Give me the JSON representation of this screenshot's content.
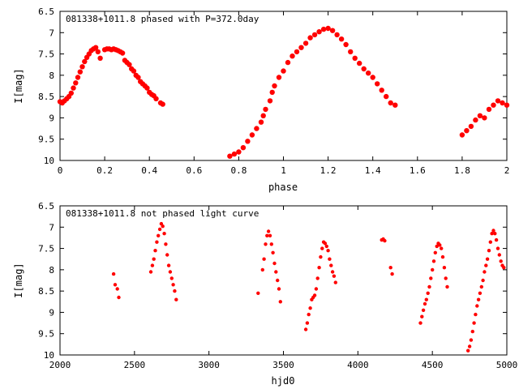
{
  "chart_data": [
    {
      "type": "scatter",
      "title": "081338+1011.8 phased with P=372.0day",
      "xlabel": "phase",
      "ylabel": "I[mag]",
      "xlim": [
        0,
        2
      ],
      "ylim": [
        6.5,
        10
      ],
      "y_inverted": true,
      "x_ticks": [
        "0",
        "0.2",
        "0.4",
        "0.6",
        "0.8",
        "1",
        "1.2",
        "1.4",
        "1.6",
        "1.8",
        "2"
      ],
      "y_ticks": [
        "6.5",
        "7",
        "7.5",
        "8",
        "8.5",
        "9",
        "9.5",
        "10"
      ],
      "marker_color": "#ff0000",
      "series": [
        {
          "x": [
            0.0,
            0.01,
            0.02,
            0.03,
            0.04,
            0.05,
            0.06,
            0.07,
            0.08,
            0.09,
            0.1,
            0.11,
            0.12,
            0.13,
            0.14,
            0.15,
            0.16,
            0.17,
            0.18,
            0.2,
            0.21,
            0.22,
            0.23,
            0.24,
            0.25,
            0.26,
            0.27,
            0.28,
            0.29,
            0.3,
            0.31,
            0.32,
            0.33,
            0.34,
            0.35,
            0.36,
            0.37,
            0.38,
            0.39,
            0.4,
            0.41,
            0.42,
            0.43,
            0.45,
            0.46,
            0.76,
            0.78,
            0.8,
            0.82,
            0.84,
            0.86,
            0.88,
            0.9,
            0.91,
            0.92,
            0.94,
            0.95,
            0.96,
            0.98,
            1.0,
            1.02,
            1.04,
            1.06,
            1.08,
            1.1,
            1.12,
            1.14,
            1.16,
            1.18,
            1.2,
            1.22,
            1.24,
            1.26,
            1.28,
            1.3,
            1.32,
            1.34,
            1.36,
            1.38,
            1.4,
            1.42,
            1.44,
            1.46,
            1.48,
            1.5,
            1.8,
            1.82,
            1.84,
            1.86,
            1.88,
            1.9,
            1.92,
            1.94,
            1.96,
            1.98,
            2.0
          ],
          "y": [
            8.62,
            8.65,
            8.6,
            8.55,
            8.5,
            8.42,
            8.3,
            8.18,
            8.05,
            7.92,
            7.8,
            7.68,
            7.58,
            7.5,
            7.42,
            7.38,
            7.35,
            7.45,
            7.6,
            7.4,
            7.38,
            7.38,
            7.4,
            7.38,
            7.4,
            7.42,
            7.45,
            7.48,
            7.65,
            7.7,
            7.75,
            7.85,
            7.9,
            8.0,
            8.05,
            8.15,
            8.2,
            8.25,
            8.3,
            8.4,
            8.45,
            8.48,
            8.55,
            8.65,
            8.68,
            9.9,
            9.85,
            9.8,
            9.7,
            9.55,
            9.4,
            9.25,
            9.1,
            8.95,
            8.8,
            8.6,
            8.4,
            8.25,
            8.05,
            7.9,
            7.7,
            7.55,
            7.45,
            7.35,
            7.25,
            7.12,
            7.05,
            6.98,
            6.92,
            6.9,
            6.95,
            7.05,
            7.15,
            7.28,
            7.45,
            7.6,
            7.72,
            7.85,
            7.95,
            8.05,
            8.2,
            8.35,
            8.5,
            8.65,
            8.7,
            9.4,
            9.3,
            9.2,
            9.05,
            8.95,
            9.0,
            8.8,
            8.7,
            8.6,
            8.65,
            8.7
          ]
        }
      ]
    },
    {
      "type": "scatter",
      "title": "081338+1011.8 not phased light curve",
      "xlabel": "hjd0",
      "ylabel": "I[mag]",
      "xlim": [
        2000,
        5000
      ],
      "ylim": [
        6.5,
        10
      ],
      "y_inverted": true,
      "x_ticks": [
        "2000",
        "2500",
        "3000",
        "3500",
        "4000",
        "4500",
        "5000"
      ],
      "y_ticks": [
        "6.5",
        "7",
        "7.5",
        "8",
        "8.5",
        "9",
        "9.5",
        "10"
      ],
      "marker_color": "#ff0000",
      "series": [
        {
          "x": [
            2360,
            2370,
            2385,
            2395,
            2610,
            2620,
            2630,
            2640,
            2650,
            2660,
            2670,
            2680,
            2690,
            2700,
            2710,
            2720,
            2730,
            2740,
            2750,
            2760,
            2770,
            2780,
            3330,
            3360,
            3370,
            3380,
            3390,
            3400,
            3410,
            3420,
            3430,
            3440,
            3450,
            3460,
            3470,
            3480,
            3650,
            3660,
            3670,
            3680,
            3690,
            3700,
            3710,
            3720,
            3730,
            3740,
            3750,
            3760,
            3770,
            3780,
            3790,
            3800,
            3810,
            3820,
            3830,
            3840,
            3850,
            4160,
            4170,
            4180,
            4220,
            4230,
            4420,
            4430,
            4440,
            4450,
            4460,
            4470,
            4480,
            4490,
            4500,
            4510,
            4520,
            4530,
            4540,
            4550,
            4560,
            4570,
            4580,
            4590,
            4600,
            4740,
            4750,
            4760,
            4770,
            4780,
            4790,
            4800,
            4810,
            4820,
            4830,
            4840,
            4850,
            4860,
            4870,
            4880,
            4890,
            4900,
            4910,
            4920,
            4930,
            4940,
            4950,
            4960,
            4970,
            4980
          ],
          "y": [
            8.1,
            8.35,
            8.45,
            8.65,
            8.05,
            7.9,
            7.75,
            7.55,
            7.35,
            7.2,
            7.05,
            6.92,
            6.98,
            7.15,
            7.4,
            7.65,
            7.9,
            8.05,
            8.2,
            8.35,
            8.5,
            8.7,
            8.55,
            8.0,
            7.75,
            7.4,
            7.2,
            7.1,
            7.2,
            7.4,
            7.6,
            7.85,
            8.05,
            8.25,
            8.45,
            8.75,
            9.4,
            9.25,
            9.05,
            8.9,
            8.7,
            8.65,
            8.6,
            8.45,
            8.2,
            7.95,
            7.7,
            7.5,
            7.35,
            7.38,
            7.45,
            7.55,
            7.75,
            7.9,
            8.05,
            8.15,
            8.3,
            7.3,
            7.28,
            7.32,
            7.95,
            8.1,
            9.25,
            9.1,
            8.95,
            8.8,
            8.7,
            8.55,
            8.4,
            8.2,
            8.0,
            7.8,
            7.6,
            7.45,
            7.38,
            7.42,
            7.5,
            7.7,
            7.95,
            8.2,
            8.4,
            9.9,
            9.8,
            9.65,
            9.45,
            9.25,
            9.05,
            8.85,
            8.7,
            8.55,
            8.4,
            8.25,
            8.05,
            7.9,
            7.75,
            7.55,
            7.35,
            7.15,
            7.08,
            7.15,
            7.3,
            7.5,
            7.65,
            7.8,
            7.9,
            7.95
          ]
        }
      ]
    }
  ]
}
